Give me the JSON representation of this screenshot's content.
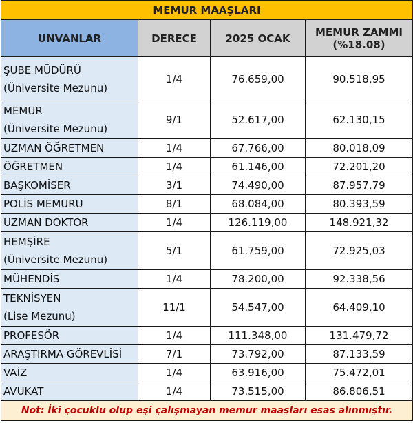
{
  "title": "MEMUR MAAŞLARI",
  "columns": [
    "UNVANLAR",
    "DERECE",
    "2025 OCAK",
    "MEMUR ZAMMI",
    "(%18.08)"
  ],
  "rows": [
    {
      "name": "ŞUBE MÜDÜRÜ",
      "sub": "(Üniversite Mezunu)",
      "derece": "1/4",
      "ocak": "76.659,00",
      "zam": "90.518,95"
    },
    {
      "name": "MEMUR",
      "sub": "(Üniversite Mezunu)",
      "derece": "9/1",
      "ocak": "52.617,00",
      "zam": "62.130,15"
    },
    {
      "name": "UZMAN ÖĞRETMEN",
      "derece": "1/4",
      "ocak": "67.766,00",
      "zam": "80.018,09"
    },
    {
      "name": "ÖĞRETMEN",
      "derece": "1/4",
      "ocak": "61.146,00",
      "zam": "72.201,20"
    },
    {
      "name": "BAŞKOMİSER",
      "derece": "3/1",
      "ocak": "74.490,00",
      "zam": "87.957,79"
    },
    {
      "name": "POLİS MEMURU",
      "derece": "8/1",
      "ocak": "68.084,00",
      "zam": "80.393,59"
    },
    {
      "name": "UZMAN DOKTOR",
      "derece": "1/4",
      "ocak": "126.119,00",
      "zam": "148.921,32"
    },
    {
      "name": "HEMŞİRE",
      "sub": "(Üniversite Mezunu)",
      "derece": "5/1",
      "ocak": "61.759,00",
      "zam": "72.925,03"
    },
    {
      "name": "MÜHENDİS",
      "derece": "1/4",
      "ocak": "78.200,00",
      "zam": "92.338,56"
    },
    {
      "name": "TEKNİSYEN",
      "sub": "(Lise Mezunu)",
      "derece": "11/1",
      "ocak": "54.547,00",
      "zam": "64.409,10"
    },
    {
      "name": "PROFESÖR",
      "derece": "1/4",
      "ocak": "111.348,00",
      "zam": "131.479,72"
    },
    {
      "name": "ARAŞTIRMA GÖREVLİSİ",
      "derece": "7/1",
      "ocak": "73.792,00",
      "zam": "87.133,59"
    },
    {
      "name": "VAİZ",
      "derece": "1/4",
      "ocak": "63.916,00",
      "zam": "75.472,01"
    },
    {
      "name": "AVUKAT",
      "derece": "1/4",
      "ocak": "73.515,00",
      "zam": "86.806,51"
    }
  ],
  "note": "Not: İki çocuklu olup eşi çalışmayan memur maaşları esas alınmıştır.",
  "colors": {
    "title": "#ffc000",
    "header_first": "#8db3e2",
    "header": "#d2d2d2",
    "name_col": "#dde9f5",
    "note_text": "#c00000",
    "note_bg": "#fdf0d2"
  }
}
